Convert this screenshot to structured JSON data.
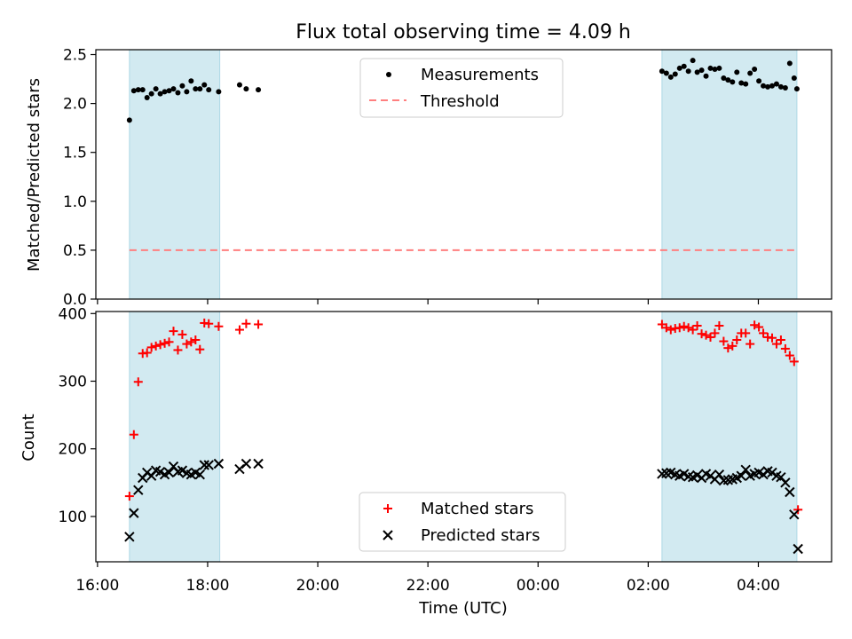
{
  "figure": {
    "title": "Flux total observing time = 4.09 h",
    "xlabel": "Time (UTC)"
  },
  "colors": {
    "measurement": "#000000",
    "threshold": "#ff7f7f",
    "matched": "#ff0000",
    "predicted": "#000000",
    "shade": "#add8e6"
  },
  "chart_data": [
    {
      "type": "scatter",
      "ylabel": "Matched/Predicted stars",
      "ylim": [
        0,
        2.55
      ],
      "yticks": [
        0,
        0.5,
        1.0,
        1.5,
        2.0,
        2.5
      ],
      "ytick_labels": [
        "0.0",
        "0.5",
        "1.0",
        "1.5",
        "2.0",
        "2.5"
      ],
      "xlim_hours": [
        15.97,
        29.33
      ],
      "shaded_intervals_hours": [
        [
          16.58,
          18.22
        ],
        [
          26.25,
          28.7
        ]
      ],
      "legend": {
        "position": "top-center",
        "entries": [
          "Measurements",
          "Threshold"
        ]
      },
      "threshold": 0.5,
      "series": [
        {
          "name": "Measurements",
          "marker": "dot",
          "x_hours": [
            16.58,
            16.66,
            16.74,
            16.82,
            16.9,
            16.98,
            17.06,
            17.14,
            17.22,
            17.3,
            17.38,
            17.46,
            17.54,
            17.62,
            17.7,
            17.78,
            17.86,
            17.94,
            18.02,
            18.2,
            18.58,
            18.7,
            18.92,
            26.25,
            26.33,
            26.41,
            26.49,
            26.57,
            26.65,
            26.73,
            26.81,
            26.89,
            26.97,
            27.05,
            27.13,
            27.21,
            27.29,
            27.37,
            27.45,
            27.53,
            27.61,
            27.69,
            27.77,
            27.85,
            27.93,
            28.01,
            28.09,
            28.17,
            28.25,
            28.33,
            28.41,
            28.49,
            28.57,
            28.65,
            28.7
          ],
          "y": [
            1.83,
            2.13,
            2.14,
            2.14,
            2.06,
            2.1,
            2.15,
            2.1,
            2.12,
            2.13,
            2.15,
            2.11,
            2.18,
            2.12,
            2.23,
            2.15,
            2.15,
            2.19,
            2.14,
            2.12,
            2.19,
            2.15,
            2.14,
            2.33,
            2.31,
            2.27,
            2.3,
            2.36,
            2.38,
            2.33,
            2.44,
            2.32,
            2.34,
            2.28,
            2.36,
            2.35,
            2.36,
            2.26,
            2.24,
            2.22,
            2.32,
            2.21,
            2.2,
            2.31,
            2.35,
            2.23,
            2.18,
            2.17,
            2.18,
            2.2,
            2.17,
            2.16,
            2.41,
            2.26,
            2.15
          ]
        }
      ]
    },
    {
      "type": "scatter",
      "ylabel": "Count",
      "ylim": [
        33,
        403
      ],
      "yticks": [
        100,
        200,
        300,
        400
      ],
      "ytick_labels": [
        "100",
        "200",
        "300",
        "400"
      ],
      "xlim_hours": [
        15.97,
        29.33
      ],
      "xticks_hours": [
        16,
        18,
        20,
        22,
        24,
        26,
        28
      ],
      "xtick_labels": [
        "16:00",
        "18:00",
        "20:00",
        "22:00",
        "00:00",
        "02:00",
        "04:00"
      ],
      "shaded_intervals_hours": [
        [
          16.58,
          18.22
        ],
        [
          26.25,
          28.7
        ]
      ],
      "legend": {
        "position": "bottom-center",
        "entries": [
          "Matched stars",
          "Predicted stars"
        ]
      },
      "series": [
        {
          "name": "Matched stars",
          "marker": "plus",
          "x_hours": [
            16.58,
            16.66,
            16.74,
            16.82,
            16.9,
            16.98,
            17.06,
            17.14,
            17.22,
            17.3,
            17.38,
            17.46,
            17.54,
            17.62,
            17.7,
            17.78,
            17.86,
            17.94,
            18.02,
            18.2,
            18.58,
            18.7,
            18.92,
            26.25,
            26.33,
            26.41,
            26.49,
            26.57,
            26.65,
            26.73,
            26.81,
            26.89,
            26.97,
            27.05,
            27.13,
            27.21,
            27.29,
            27.37,
            27.45,
            27.53,
            27.61,
            27.69,
            27.77,
            27.85,
            27.93,
            28.01,
            28.09,
            28.17,
            28.25,
            28.33,
            28.41,
            28.49,
            28.57,
            28.65,
            28.72
          ],
          "y": [
            130,
            221,
            299,
            341,
            342,
            350,
            352,
            354,
            356,
            358,
            374,
            346,
            369,
            355,
            358,
            361,
            347,
            386,
            385,
            381,
            376,
            385,
            384,
            384,
            379,
            376,
            378,
            379,
            381,
            379,
            376,
            382,
            370,
            368,
            365,
            371,
            382,
            359,
            349,
            352,
            361,
            371,
            371,
            355,
            383,
            380,
            371,
            365,
            364,
            355,
            361,
            348,
            338,
            329,
            110
          ]
        },
        {
          "name": "Predicted stars",
          "marker": "x",
          "x_hours": [
            16.58,
            16.66,
            16.74,
            16.82,
            16.9,
            16.98,
            17.06,
            17.14,
            17.22,
            17.3,
            17.38,
            17.46,
            17.54,
            17.62,
            17.7,
            17.78,
            17.86,
            17.94,
            18.02,
            18.2,
            18.58,
            18.7,
            18.92,
            26.25,
            26.33,
            26.41,
            26.49,
            26.57,
            26.65,
            26.73,
            26.81,
            26.89,
            26.97,
            27.05,
            27.13,
            27.21,
            27.29,
            27.37,
            27.45,
            27.53,
            27.61,
            27.69,
            27.77,
            27.85,
            27.93,
            28.01,
            28.09,
            28.17,
            28.25,
            28.33,
            28.41,
            28.49,
            28.57,
            28.65,
            28.72
          ],
          "y": [
            70,
            105,
            139,
            157,
            165,
            160,
            168,
            166,
            162,
            165,
            174,
            166,
            168,
            164,
            162,
            165,
            162,
            176,
            176,
            178,
            170,
            178,
            178,
            163,
            164,
            165,
            162,
            160,
            163,
            159,
            158,
            161,
            157,
            163,
            160,
            155,
            162,
            153,
            154,
            155,
            157,
            160,
            169,
            160,
            163,
            165,
            162,
            167,
            165,
            160,
            158,
            150,
            136,
            103,
            52
          ]
        }
      ]
    }
  ]
}
